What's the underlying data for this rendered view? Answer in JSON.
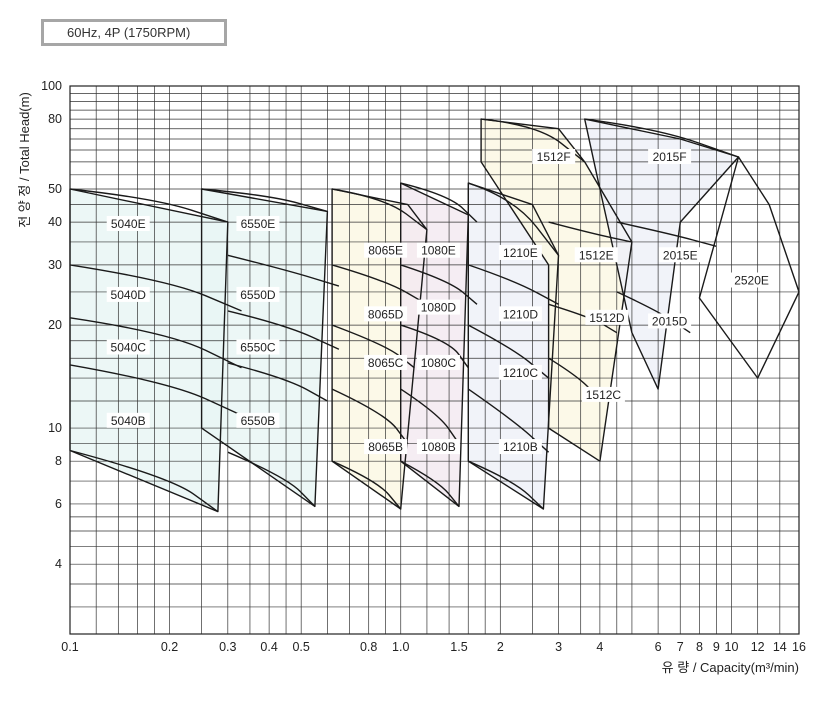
{
  "header": {
    "speed_badge": "60Hz, 4P (1750RPM)"
  },
  "chart_data": {
    "type": "pump-coverage",
    "xlabel": "유 량 / Capacity(m³/min)",
    "ylabel": "전 양 정 / Total Head(m)",
    "x_scale": "log",
    "y_scale": "log",
    "xlim": [
      0.1,
      16
    ],
    "ylim": [
      2.5,
      100
    ],
    "grid": true,
    "x_ticks": [
      {
        "value": 0.1,
        "label": "0.1"
      },
      {
        "value": 0.2,
        "label": "0.2"
      },
      {
        "value": 0.3,
        "label": "0.3"
      },
      {
        "value": 0.4,
        "label": "0.4"
      },
      {
        "value": 0.5,
        "label": "0.5"
      },
      {
        "value": 0.8,
        "label": "0.8"
      },
      {
        "value": 1.0,
        "label": "1.0"
      },
      {
        "value": 1.5,
        "label": "1.5"
      },
      {
        "value": 2,
        "label": "2"
      },
      {
        "value": 3,
        "label": "3"
      },
      {
        "value": 4,
        "label": "4"
      },
      {
        "value": 6,
        "label": "6"
      },
      {
        "value": 7,
        "label": "7"
      },
      {
        "value": 8,
        "label": "8"
      },
      {
        "value": 9,
        "label": "9"
      },
      {
        "value": 10,
        "label": "10"
      },
      {
        "value": 12,
        "label": "12"
      },
      {
        "value": 14,
        "label": "14"
      },
      {
        "value": 16,
        "label": "16"
      }
    ],
    "y_ticks": [
      {
        "value": 4,
        "label": "4"
      },
      {
        "value": 6,
        "label": "6"
      },
      {
        "value": 8,
        "label": "8"
      },
      {
        "value": 10,
        "label": "10"
      },
      {
        "value": 20,
        "label": "20"
      },
      {
        "value": 30,
        "label": "30"
      },
      {
        "value": 40,
        "label": "40"
      },
      {
        "value": 50,
        "label": "50"
      },
      {
        "value": 80,
        "label": "80"
      },
      {
        "value": 100,
        "label": "100"
      }
    ],
    "x_grid": [
      0.1,
      0.12,
      0.14,
      0.16,
      0.18,
      0.2,
      0.25,
      0.3,
      0.35,
      0.4,
      0.45,
      0.5,
      0.6,
      0.7,
      0.8,
      0.9,
      1.0,
      1.2,
      1.4,
      1.6,
      1.8,
      2,
      2.5,
      3,
      3.5,
      4,
      4.5,
      5,
      6,
      7,
      8,
      9,
      10,
      12,
      14,
      16
    ],
    "y_grid": [
      2.5,
      3,
      3.5,
      4,
      4.5,
      5,
      5.5,
      6,
      7,
      8,
      9,
      10,
      12,
      14,
      16,
      18,
      20,
      25,
      30,
      35,
      40,
      45,
      50,
      55,
      60,
      65,
      70,
      75,
      80,
      85,
      90,
      95,
      100
    ],
    "families": [
      {
        "name": "5040",
        "color": "#e9f6f4",
        "outline": [
          [
            0.1,
            50
          ],
          [
            0.3,
            40
          ],
          [
            0.28,
            5.7
          ],
          [
            0.1,
            8.6
          ]
        ],
        "curves": [
          [
            [
              0.1,
              50
            ],
            [
              0.18,
              47
            ],
            [
              0.3,
              40
            ]
          ],
          [
            [
              0.1,
              30
            ],
            [
              0.2,
              27
            ],
            [
              0.33,
              22
            ]
          ],
          [
            [
              0.1,
              21
            ],
            [
              0.2,
              19
            ],
            [
              0.33,
              15
            ]
          ],
          [
            [
              0.1,
              15.3
            ],
            [
              0.2,
              13.6
            ],
            [
              0.33,
              10.9
            ]
          ],
          [
            [
              0.1,
              8.6
            ],
            [
              0.2,
              7.2
            ],
            [
              0.28,
              5.7
            ]
          ]
        ],
        "models": [
          {
            "label": "5040E",
            "x": 0.15,
            "y": 39.5
          },
          {
            "label": "5040D",
            "x": 0.15,
            "y": 24.5
          },
          {
            "label": "5040C",
            "x": 0.15,
            "y": 17.2
          },
          {
            "label": "5040B",
            "x": 0.15,
            "y": 10.5
          }
        ]
      },
      {
        "name": "6550",
        "color": "#e9f6f4",
        "outline": [
          [
            0.25,
            50
          ],
          [
            0.6,
            43
          ],
          [
            0.55,
            5.9
          ],
          [
            0.25,
            10
          ]
        ],
        "curves": [
          [
            [
              0.25,
              50
            ],
            [
              0.4,
              48
            ],
            [
              0.6,
              43
            ]
          ],
          [
            [
              0.3,
              32
            ],
            [
              0.45,
              29
            ],
            [
              0.65,
              26
            ]
          ],
          [
            [
              0.3,
              22
            ],
            [
              0.45,
              20
            ],
            [
              0.65,
              17
            ]
          ],
          [
            [
              0.3,
              15.5
            ],
            [
              0.45,
              14
            ],
            [
              0.6,
              12
            ]
          ],
          [
            [
              0.3,
              8.5
            ],
            [
              0.45,
              7.2
            ],
            [
              0.55,
              5.9
            ]
          ]
        ],
        "models": [
          {
            "label": "6550E",
            "x": 0.37,
            "y": 39.5
          },
          {
            "label": "6550D",
            "x": 0.37,
            "y": 24.5
          },
          {
            "label": "6550C",
            "x": 0.37,
            "y": 17.2
          },
          {
            "label": "6550B",
            "x": 0.37,
            "y": 10.5
          }
        ]
      },
      {
        "name": "8065",
        "color": "#fbf8e4",
        "outline": [
          [
            0.62,
            50
          ],
          [
            1.05,
            45
          ],
          [
            1.2,
            38
          ],
          [
            1.0,
            5.8
          ],
          [
            0.62,
            8
          ]
        ],
        "curves": [
          [
            [
              0.62,
              50
            ],
            [
              0.9,
              47
            ],
            [
              1.2,
              38
            ]
          ],
          [
            [
              0.62,
              30
            ],
            [
              0.9,
              27
            ],
            [
              1.2,
              23
            ]
          ],
          [
            [
              0.62,
              20
            ],
            [
              0.9,
              17.5
            ],
            [
              1.1,
              15
            ]
          ],
          [
            [
              0.62,
              13
            ],
            [
              0.9,
              11
            ],
            [
              1.05,
              9
            ]
          ],
          [
            [
              0.62,
              8
            ],
            [
              0.85,
              7
            ],
            [
              1.0,
              5.8
            ]
          ]
        ],
        "models": [
          {
            "label": "8065E",
            "x": 0.9,
            "y": 33.0
          },
          {
            "label": "8065D",
            "x": 0.9,
            "y": 21.5
          },
          {
            "label": "8065C",
            "x": 0.9,
            "y": 15.5
          },
          {
            "label": "8065B",
            "x": 0.9,
            "y": 8.8
          }
        ]
      },
      {
        "name": "1080",
        "color": "#f3eaf1",
        "outline": [
          [
            1.0,
            52
          ],
          [
            1.6,
            42
          ],
          [
            1.5,
            5.9
          ],
          [
            1.0,
            8
          ]
        ],
        "curves": [
          [
            [
              1.0,
              52
            ],
            [
              1.4,
              48
            ],
            [
              1.7,
              40
            ]
          ],
          [
            [
              1.0,
              30
            ],
            [
              1.4,
              27
            ],
            [
              1.7,
              23
            ]
          ],
          [
            [
              1.0,
              20
            ],
            [
              1.4,
              18
            ],
            [
              1.6,
              15
            ]
          ],
          [
            [
              1.0,
              13
            ],
            [
              1.3,
              11
            ],
            [
              1.5,
              9
            ]
          ],
          [
            [
              1.0,
              8
            ],
            [
              1.3,
              7
            ],
            [
              1.5,
              5.9
            ]
          ]
        ],
        "models": [
          {
            "label": "1080E",
            "x": 1.3,
            "y": 33.0
          },
          {
            "label": "1080D",
            "x": 1.3,
            "y": 22.5
          },
          {
            "label": "1080C",
            "x": 1.3,
            "y": 15.5
          },
          {
            "label": "1080B",
            "x": 1.3,
            "y": 8.8
          }
        ]
      },
      {
        "name": "1210",
        "color": "#eef1f8",
        "outline": [
          [
            1.6,
            52
          ],
          [
            2.5,
            45
          ],
          [
            3.0,
            32
          ],
          [
            2.7,
            5.8
          ],
          [
            1.6,
            8
          ]
        ],
        "curves": [
          [
            [
              1.6,
              52
            ],
            [
              2.2,
              47
            ],
            [
              3.0,
              32
            ]
          ],
          [
            [
              1.6,
              30
            ],
            [
              2.2,
              27
            ],
            [
              3.0,
              23
            ]
          ],
          [
            [
              1.6,
              20
            ],
            [
              2.2,
              17
            ],
            [
              2.8,
              14
            ]
          ],
          [
            [
              1.6,
              13
            ],
            [
              2.2,
              10.5
            ],
            [
              2.8,
              8.5
            ]
          ],
          [
            [
              1.6,
              8
            ],
            [
              2.2,
              7
            ],
            [
              2.7,
              5.8
            ]
          ]
        ],
        "models": [
          {
            "label": "1210E",
            "x": 2.3,
            "y": 32.5
          },
          {
            "label": "1210D",
            "x": 2.3,
            "y": 21.5
          },
          {
            "label": "1210C",
            "x": 2.3,
            "y": 14.5
          },
          {
            "label": "1210B",
            "x": 2.3,
            "y": 8.8
          }
        ]
      },
      {
        "name": "1512",
        "color": "#fbf8e4",
        "outline": [
          [
            1.75,
            80
          ],
          [
            3.0,
            75
          ],
          [
            3.6,
            60
          ],
          [
            5.0,
            35
          ],
          [
            4.0,
            8
          ],
          [
            2.8,
            10
          ],
          [
            2.8,
            30
          ],
          [
            1.75,
            60
          ]
        ],
        "curves": [
          [
            [
              1.75,
              80
            ],
            [
              2.6,
              77
            ],
            [
              3.6,
              60
            ]
          ],
          [
            [
              2.8,
              40
            ],
            [
              3.8,
              37
            ],
            [
              5.0,
              35
            ]
          ],
          [
            [
              2.8,
              23
            ],
            [
              3.8,
              21
            ],
            [
              4.5,
              19
            ]
          ],
          [
            [
              2.8,
              16
            ],
            [
              3.5,
              14
            ],
            [
              4.0,
              12
            ]
          ]
        ],
        "models": [
          {
            "label": "1512F",
            "x": 2.9,
            "y": 62.0
          },
          {
            "label": "1512E",
            "x": 3.9,
            "y": 32.0
          },
          {
            "label": "1512D",
            "x": 4.2,
            "y": 21.0
          },
          {
            "label": "1512C",
            "x": 4.1,
            "y": 12.5
          }
        ]
      },
      {
        "name": "2015",
        "color": "#eef1f8",
        "outline": [
          [
            3.6,
            80
          ],
          [
            7.0,
            70
          ],
          [
            10.5,
            62
          ],
          [
            7.0,
            40
          ],
          [
            6.0,
            13
          ],
          [
            5.0,
            19
          ],
          [
            4.0,
            50
          ]
        ],
        "curves": [
          [
            [
              3.6,
              80
            ],
            [
              6.0,
              75
            ],
            [
              10.5,
              62
            ]
          ],
          [
            [
              4.5,
              40
            ],
            [
              6.5,
              37
            ],
            [
              9.0,
              34
            ]
          ],
          [
            [
              4.5,
              25
            ],
            [
              6.0,
              22
            ],
            [
              7.5,
              19
            ]
          ]
        ],
        "models": [
          {
            "label": "2015F",
            "x": 6.5,
            "y": 62.0
          },
          {
            "label": "2015E",
            "x": 7.0,
            "y": 32.0
          },
          {
            "label": "2015D",
            "x": 6.5,
            "y": 20.5
          }
        ]
      },
      {
        "name": "2520",
        "color": "#ffffff",
        "outline": [
          [
            10.5,
            62
          ],
          [
            13.0,
            45
          ],
          [
            16.0,
            25
          ],
          [
            12.0,
            14
          ],
          [
            8.0,
            24
          ]
        ],
        "curves": [],
        "models": [
          {
            "label": "2520E",
            "x": 11.5,
            "y": 27.0
          }
        ]
      }
    ]
  }
}
